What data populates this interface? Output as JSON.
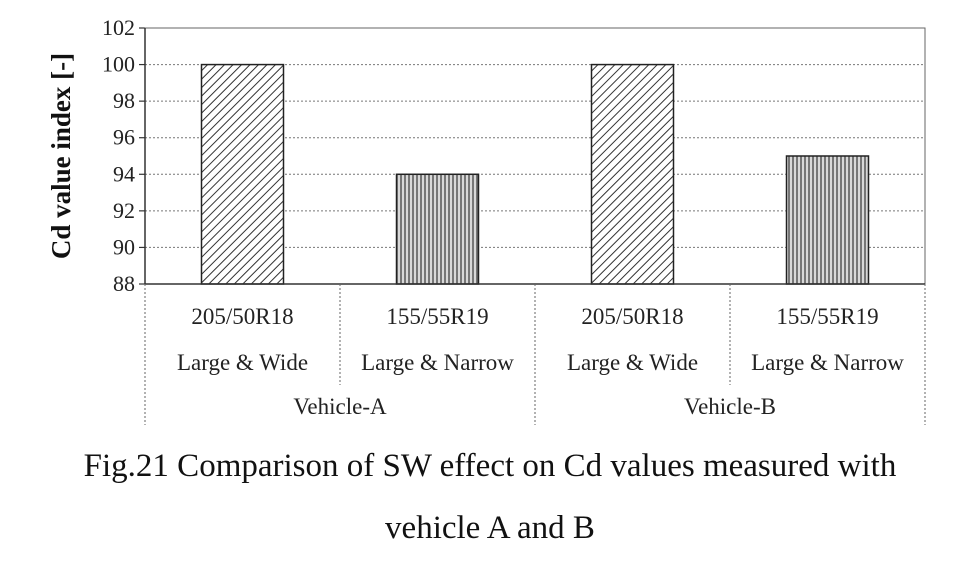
{
  "chart_data": {
    "type": "bar",
    "ylabel": "Cd value index [-]",
    "ylim": [
      88,
      102
    ],
    "yticks": [
      88,
      90,
      92,
      94,
      96,
      98,
      100,
      102
    ],
    "grid": true,
    "bars": [
      {
        "size": "205/50R18",
        "type": "Large & Wide",
        "group": "Vehicle-A",
        "value": 100,
        "pattern": "diagonal"
      },
      {
        "size": "155/55R19",
        "type": "Large & Narrow",
        "group": "Vehicle-A",
        "value": 94,
        "pattern": "vertical"
      },
      {
        "size": "205/50R18",
        "type": "Large & Wide",
        "group": "Vehicle-B",
        "value": 100,
        "pattern": "diagonal"
      },
      {
        "size": "155/55R19",
        "type": "Large & Narrow",
        "group": "Vehicle-B",
        "value": 95,
        "pattern": "vertical"
      }
    ],
    "groups": [
      "Vehicle-A",
      "Vehicle-B"
    ]
  },
  "caption": {
    "line1": "Fig.21 Comparison of SW effect on Cd values measured with",
    "line2": "vehicle A and B"
  }
}
